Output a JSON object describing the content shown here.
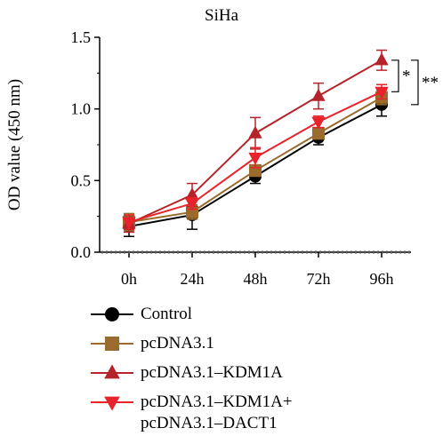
{
  "chart_data": {
    "type": "line",
    "title": "SiHa",
    "ylabel": "OD value (450 nm)",
    "xlabel": "",
    "categories": [
      "0h",
      "24h",
      "48h",
      "72h",
      "96h"
    ],
    "ylim": [
      0,
      1.5
    ],
    "yticks": [
      "0.0",
      "0.5",
      "1.0",
      "1.5"
    ],
    "series": [
      {
        "name": "Control",
        "color": "#000000",
        "marker": "circle",
        "values": [
          0.18,
          0.26,
          0.53,
          0.8,
          1.03
        ],
        "errors": [
          0.07,
          0.1,
          0.05,
          0.05,
          0.08
        ]
      },
      {
        "name": "pcDNA3.1",
        "color": "#9a6b2c",
        "marker": "square",
        "values": [
          0.21,
          0.28,
          0.57,
          0.83,
          1.08
        ],
        "errors": [
          0.06,
          0.05,
          0.04,
          0.04,
          0.05
        ]
      },
      {
        "name": "pcDNA3.1–KDM1A",
        "color": "#b5242a",
        "marker": "triangle-up",
        "values": [
          0.2,
          0.4,
          0.83,
          1.09,
          1.34
        ],
        "errors": [
          0.06,
          0.08,
          0.11,
          0.09,
          0.07
        ]
      },
      {
        "name": "pcDNA3.1–KDM1A+\npcDNA3.1–DACT1",
        "color": "#e8232b",
        "marker": "triangle-down",
        "values": [
          0.21,
          0.34,
          0.66,
          0.91,
          1.12
        ],
        "errors": [
          0.05,
          0.04,
          0.07,
          0.04,
          0.05
        ]
      }
    ],
    "annotations": [
      {
        "text": "*",
        "from_series": 2,
        "to_series": 3
      },
      {
        "text": "**",
        "from_series": 2,
        "to_series": 0
      }
    ],
    "grid": false,
    "legend_position": "bottom"
  }
}
